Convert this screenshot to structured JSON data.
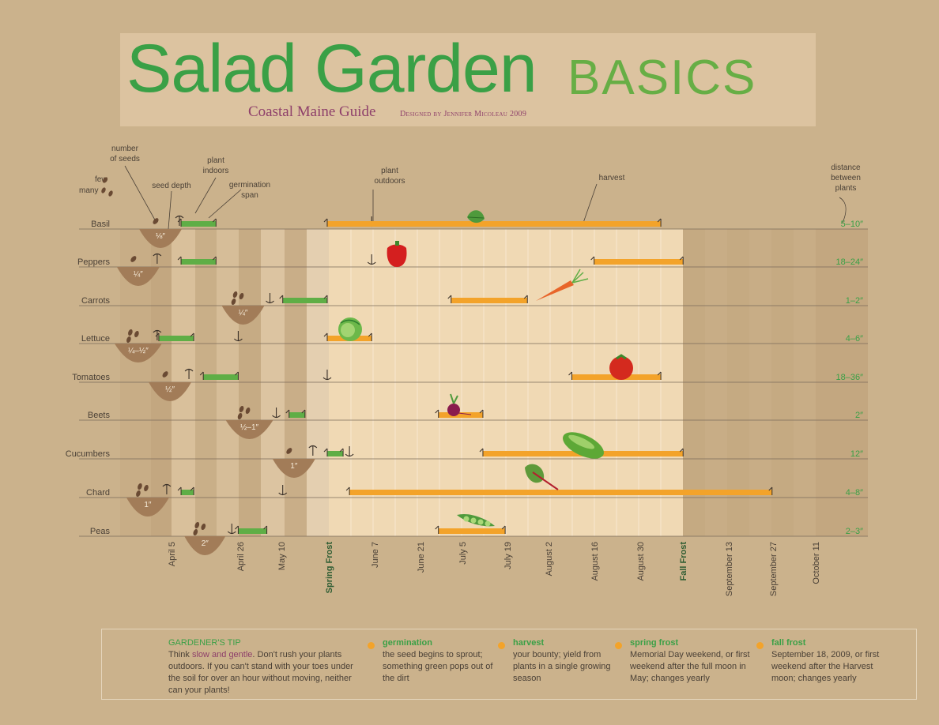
{
  "title": {
    "main": "Salad Garden",
    "accent": "BASICS",
    "subtitle": "Coastal Maine Guide",
    "credit": "Designed by Jennifer Micoleau 2009"
  },
  "legend_labels": {
    "number_of_seeds": "number of seeds",
    "few": "few",
    "many": "many",
    "seed_depth": "seed depth",
    "plant_indoors": "plant indoors",
    "germination_span": "germination span",
    "plant_outdoors": "plant outdoors",
    "harvest": "harvest",
    "distance_between_plants": "distance between plants"
  },
  "colors": {
    "germination": "#5fae46",
    "harvest": "#f3a32a",
    "title_green": "#3aa046",
    "subtitle_purple": "#8e3f6a",
    "soil": "#a27c58",
    "seed": "#6a4a33"
  },
  "chart_data": {
    "type": "gantt",
    "x_axis_ticks": [
      {
        "label": "April 5",
        "bold": false
      },
      {
        "label": "April 26",
        "bold": false
      },
      {
        "label": "May 10",
        "bold": false
      },
      {
        "label": "Spring Frost",
        "bold": true
      },
      {
        "label": "June 7",
        "bold": false
      },
      {
        "label": "June 21",
        "bold": false
      },
      {
        "label": "July 5",
        "bold": false
      },
      {
        "label": "July 19",
        "bold": false
      },
      {
        "label": "August 2",
        "bold": false
      },
      {
        "label": "August 16",
        "bold": false
      },
      {
        "label": "August 30",
        "bold": false
      },
      {
        "label": "Fall Frost",
        "bold": true
      },
      {
        "label": "September 13",
        "bold": false
      },
      {
        "label": "September 27",
        "bold": false
      },
      {
        "label": "October 11",
        "bold": false
      }
    ],
    "crops": [
      {
        "name": "Basil",
        "seeds": "few",
        "depth": "⅛″",
        "plant_indoors": "Apr 5",
        "germination": [
          "Apr 8",
          "Apr 19"
        ],
        "plant_outdoors": "Jun 7",
        "harvest": [
          "May 24",
          "Sep 6"
        ],
        "spacing": "5–10″",
        "icon": "basil-leaf-icon"
      },
      {
        "name": "Peppers",
        "seeds": "few",
        "depth": "¼″",
        "plant_indoors": "Mar 29",
        "germination": [
          "Apr 8",
          "Apr 19"
        ],
        "plant_outdoors": "Jun 7",
        "harvest": [
          "Aug 16",
          "Sep 13"
        ],
        "spacing": "18–24″",
        "icon": "pepper-icon"
      },
      {
        "name": "Carrots",
        "seeds": "many",
        "depth": "¼″",
        "plant_outdoors": "May 1",
        "germination": [
          "May 10",
          "May 24"
        ],
        "harvest": [
          "Jul 2",
          "Jul 26"
        ],
        "spacing": "1–2″",
        "icon": "carrot-icon"
      },
      {
        "name": "Lettuce",
        "seeds": "many",
        "depth": "¼–½″",
        "plant_indoors": "Mar 29",
        "germination": [
          "Apr 1",
          "Apr 12"
        ],
        "plant_outdoors": "Apr 26",
        "harvest": [
          "May 24",
          "Jun 7"
        ],
        "spacing": "4–6″",
        "icon": "lettuce-icon"
      },
      {
        "name": "Tomatoes",
        "seeds": "few",
        "depth": "½″",
        "plant_indoors": "Apr 8",
        "germination": [
          "Apr 15",
          "Apr 26"
        ],
        "plant_outdoors": "May 24",
        "harvest": [
          "Aug 9",
          "Sep 6"
        ],
        "spacing": "18–36″",
        "icon": "tomato-icon"
      },
      {
        "name": "Beets",
        "seeds": "many",
        "depth": "½–1″",
        "plant_outdoors": "May 3",
        "germination": [
          "May 12",
          "May 17"
        ],
        "harvest": [
          "Jun 28",
          "Jul 12"
        ],
        "spacing": "2″",
        "icon": "beet-icon"
      },
      {
        "name": "Cucumbers",
        "seeds": "few",
        "depth": "1″",
        "plant_indoors": "May 17",
        "germination": [
          "May 24",
          "May 29"
        ],
        "plant_outdoors": "May 31",
        "harvest": [
          "Jul 12",
          "Sep 13"
        ],
        "spacing": "12″",
        "icon": "cucumber-icon"
      },
      {
        "name": "Chard",
        "seeds": "many",
        "depth": "1″",
        "plant_indoors": "Apr 1",
        "germination": [
          "Apr 8",
          "Apr 12"
        ],
        "plant_outdoors": "May 10",
        "harvest": [
          "May 31",
          "Oct 11"
        ],
        "spacing": "4–8″",
        "icon": "chard-icon"
      },
      {
        "name": "Peas",
        "seeds": "many",
        "depth": "2″",
        "plant_outdoors": "Apr 19",
        "germination": [
          "Apr 26",
          "May 5"
        ],
        "harvest": [
          "Jun 28",
          "Jul 19"
        ],
        "spacing": "2–3″",
        "icon": "pea-pod-icon"
      }
    ]
  },
  "footer": {
    "tip_heading": "GARDENER'S TIP",
    "tip_pre": "Think ",
    "tip_highlight": "slow and gentle",
    "tip_post": ". Don't rush your plants outdoors. If you can't stand with your toes under the soil for over an hour without moving, neither can your plants!",
    "key": [
      {
        "title": "germination",
        "text": "the seed begins to sprout; something green pops out of the dirt"
      },
      {
        "title": "harvest",
        "text": "your bounty; yield from plants in a single growing season"
      },
      {
        "title": "spring frost",
        "text": "Memorial Day weekend, or first weekend after the full moon in May; changes yearly"
      },
      {
        "title": "fall frost",
        "text": "September 18, 2009, or first weekend after the Harvest moon; changes yearly"
      }
    ]
  }
}
